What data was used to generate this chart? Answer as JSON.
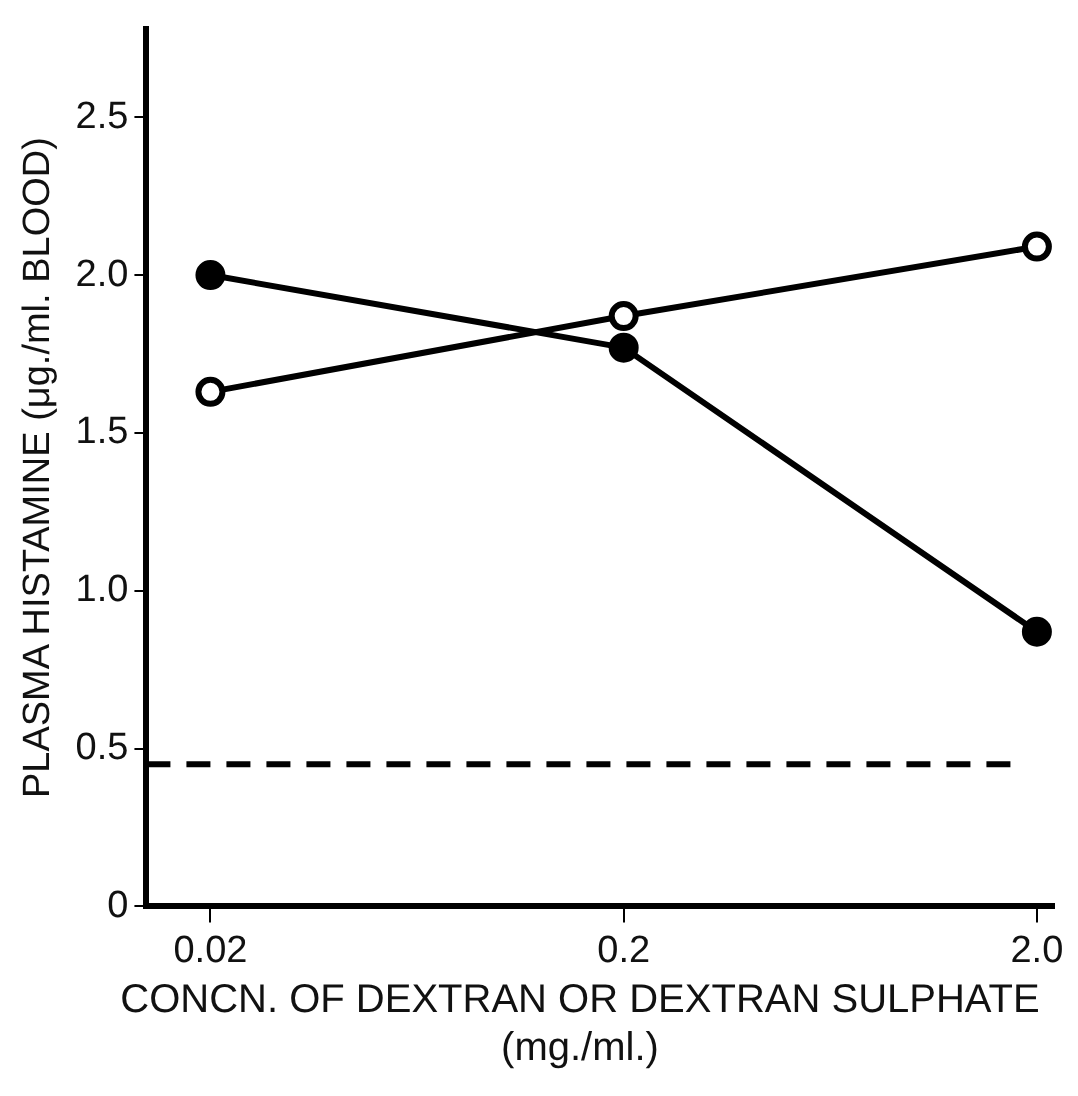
{
  "chart_data": {
    "type": "line",
    "xlabel": "CONCN. OF DEXTRAN OR DEXTRAN SULPHATE (mg./ml.)",
    "ylabel": "PLASMA HISTAMINE (μg./ml. BLOOD)",
    "log": "x",
    "x": [
      0.02,
      0.2,
      2
    ],
    "xlim": [
      0.014,
      2.2
    ],
    "xticks": [
      0.02,
      0.2,
      {
        "value": 2,
        "label": "2.0"
      }
    ],
    "ylim": [
      0,
      2.78
    ],
    "yticks": [
      0,
      0.5,
      {
        "value": 1,
        "label": "1.0"
      },
      1.5,
      {
        "value": 2,
        "label": "2.0"
      },
      2.5
    ],
    "series": [
      {
        "color": "#000000",
        "marker": "circle",
        "values": [
          2.0,
          1.77,
          0.87
        ]
      },
      {
        "color": "#000000",
        "marker": "circle_open",
        "values": [
          1.63,
          1.87,
          2.09
        ]
      }
    ],
    "ref_lines": [
      {
        "axis": "y",
        "value": 0.45,
        "line_style": "dashed"
      }
    ],
    "marker": "circle",
    "line_style": "solid",
    "grid": false,
    "legend": false
  }
}
